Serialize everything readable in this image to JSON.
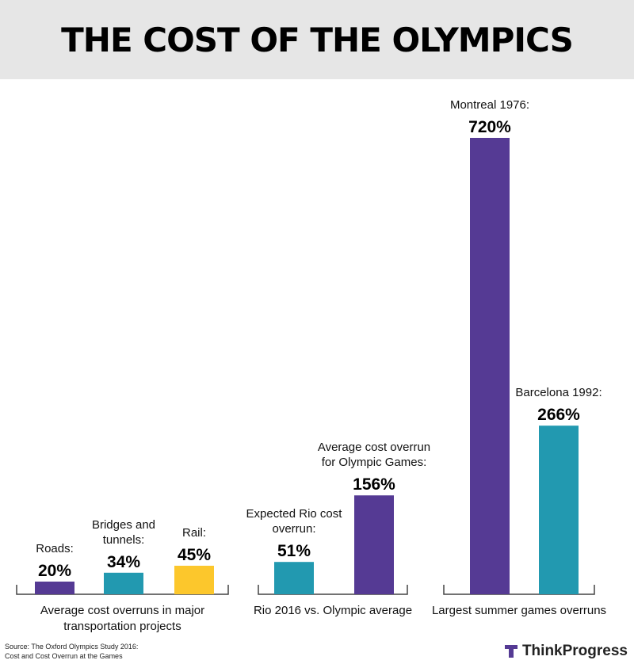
{
  "header": {
    "title": "THE COST OF THE OLYMPICS"
  },
  "chart_data": {
    "type": "bar",
    "title": "THE COST OF THE OLYMPICS",
    "unit": "%",
    "groups": [
      {
        "label": "Average cost overruns in major transportation projects",
        "label_lines": [
          "Average cost overruns in major",
          "transportation projects"
        ],
        "bars": [
          {
            "label_lines": [
              "Roads:"
            ],
            "value": 20,
            "display": "20%",
            "color": "#553a94"
          },
          {
            "label_lines": [
              "Bridges and",
              "tunnels:"
            ],
            "value": 34,
            "display": "34%",
            "color": "#2299b0"
          },
          {
            "label_lines": [
              "Rail:"
            ],
            "value": 45,
            "display": "45%",
            "color": "#fcc72c"
          }
        ]
      },
      {
        "label": "Rio 2016 vs. Olympic average",
        "label_lines": [
          "Rio 2016 vs. Olympic average"
        ],
        "bars": [
          {
            "label_lines": [
              "Expected Rio cost",
              "overrun:"
            ],
            "value": 51,
            "display": "51%",
            "color": "#2299b0"
          },
          {
            "label_lines": [
              "Average cost overrun",
              "for Olympic Games:"
            ],
            "value": 156,
            "display": "156%",
            "color": "#553a94"
          }
        ]
      },
      {
        "label": "Largest summer games overruns",
        "label_lines": [
          "Largest summer games overruns"
        ],
        "bars": [
          {
            "label_lines": [
              "Montreal 1976:"
            ],
            "value": 720,
            "display": "720%",
            "color": "#553a94"
          },
          {
            "label_lines": [
              "Barcelona 1992:"
            ],
            "value": 266,
            "display": "266%",
            "color": "#2299b0"
          }
        ]
      }
    ]
  },
  "footer": {
    "source_lines": [
      "Source: The Oxford Olympics Study 2016:",
      "Cost and Cost Overrun at the Games"
    ],
    "logo": "ThinkProgress"
  }
}
